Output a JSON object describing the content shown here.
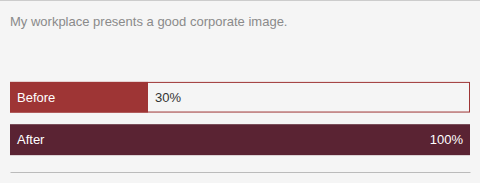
{
  "chart_data": {
    "type": "bar",
    "orientation": "horizontal",
    "title": "My workplace presents a good corporate image.",
    "categories": [
      "Before",
      "After"
    ],
    "values": [
      30,
      100
    ],
    "value_labels": [
      "30%",
      "100%"
    ],
    "colors": [
      "#9e3535",
      "#5a2333"
    ],
    "xlim": [
      0,
      100
    ],
    "data_labels": true,
    "tick_labels": false
  }
}
